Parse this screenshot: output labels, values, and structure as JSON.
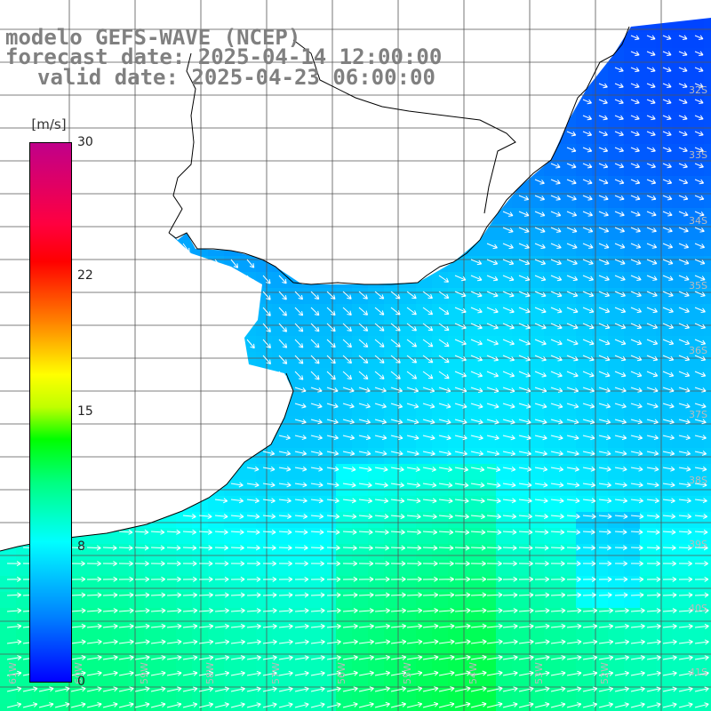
{
  "title": {
    "line1": "modelo GEFS-WAVE (NCEP)",
    "line2": "forecast date: 2025-04-14 12:00:00",
    "line3": "valid date: 2025-04-23 06:00:00"
  },
  "colorbar": {
    "unit": "[m/s]",
    "ticks": [
      "30",
      "22",
      "15",
      "8",
      "0"
    ],
    "tick_values": [
      30,
      22,
      15,
      8,
      0
    ]
  },
  "lat_labels": [
    "32S",
    "33S",
    "34S",
    "35S",
    "36S",
    "37S",
    "38S",
    "39S",
    "40S",
    "41S"
  ],
  "lon_labels": [
    "61W",
    "60W",
    "59W",
    "58W",
    "57W",
    "56W",
    "55W",
    "54W",
    "53W",
    "52W"
  ],
  "colors": {
    "land": "#ffffff",
    "grid": "#555555",
    "coast": "#000000",
    "title": "#808080"
  }
}
